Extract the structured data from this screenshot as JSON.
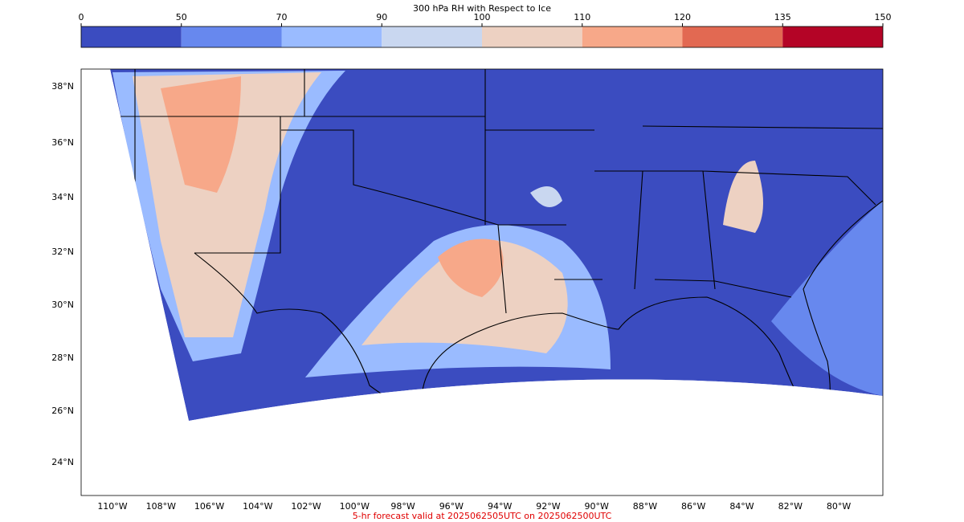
{
  "colorbar": {
    "title": "300 hPa RH with Respect to Ice",
    "levels": [
      0,
      50,
      70,
      90,
      100,
      110,
      120,
      135,
      150
    ],
    "colors": [
      "#3b4cc0",
      "#6788ee",
      "#9abbff",
      "#c9d7f0",
      "#edd1c2",
      "#f7a889",
      "#e26952",
      "#b40426"
    ]
  },
  "latitude_labels": [
    "38°N",
    "36°N",
    "34°N",
    "32°N",
    "30°N",
    "28°N",
    "26°N",
    "24°N"
  ],
  "longitude_labels": [
    "110°W",
    "108°W",
    "106°W",
    "104°W",
    "102°W",
    "100°W",
    "98°W",
    "96°W",
    "94°W",
    "92°W",
    "90°W",
    "88°W",
    "86°W",
    "84°W",
    "82°W",
    "80°W"
  ],
  "footer": "5-hr forecast valid at 2025062505UTC on 2025062500UTC"
}
